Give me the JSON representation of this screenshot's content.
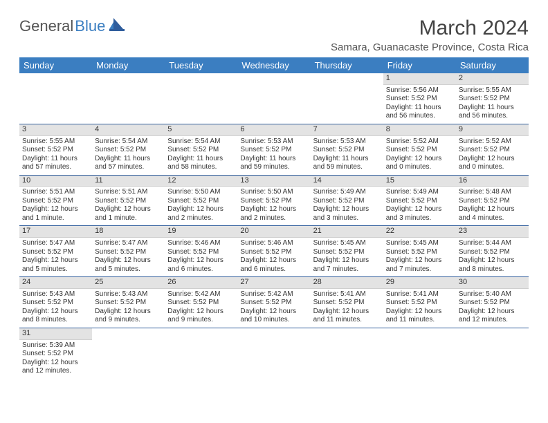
{
  "header": {
    "logo_text1": "General",
    "logo_text2": "Blue",
    "month_title": "March 2024",
    "location": "Samara, Guanacaste Province, Costa Rica"
  },
  "colors": {
    "header_bg": "#3b7ec1",
    "header_text": "#ffffff",
    "daynum_bg": "#e3e3e3",
    "row_divider": "#2f5d9c",
    "logo_accent": "#3b7ec1",
    "body_text": "#333333",
    "page_bg": "#ffffff"
  },
  "day_names": [
    "Sunday",
    "Monday",
    "Tuesday",
    "Wednesday",
    "Thursday",
    "Friday",
    "Saturday"
  ],
  "calendar": {
    "first_day_index": 5,
    "num_days": 31,
    "days": {
      "1": {
        "sunrise": "5:56 AM",
        "sunset": "5:52 PM",
        "daylight": "11 hours and 56 minutes."
      },
      "2": {
        "sunrise": "5:55 AM",
        "sunset": "5:52 PM",
        "daylight": "11 hours and 56 minutes."
      },
      "3": {
        "sunrise": "5:55 AM",
        "sunset": "5:52 PM",
        "daylight": "11 hours and 57 minutes."
      },
      "4": {
        "sunrise": "5:54 AM",
        "sunset": "5:52 PM",
        "daylight": "11 hours and 57 minutes."
      },
      "5": {
        "sunrise": "5:54 AM",
        "sunset": "5:52 PM",
        "daylight": "11 hours and 58 minutes."
      },
      "6": {
        "sunrise": "5:53 AM",
        "sunset": "5:52 PM",
        "daylight": "11 hours and 59 minutes."
      },
      "7": {
        "sunrise": "5:53 AM",
        "sunset": "5:52 PM",
        "daylight": "11 hours and 59 minutes."
      },
      "8": {
        "sunrise": "5:52 AM",
        "sunset": "5:52 PM",
        "daylight": "12 hours and 0 minutes."
      },
      "9": {
        "sunrise": "5:52 AM",
        "sunset": "5:52 PM",
        "daylight": "12 hours and 0 minutes."
      },
      "10": {
        "sunrise": "5:51 AM",
        "sunset": "5:52 PM",
        "daylight": "12 hours and 1 minute."
      },
      "11": {
        "sunrise": "5:51 AM",
        "sunset": "5:52 PM",
        "daylight": "12 hours and 1 minute."
      },
      "12": {
        "sunrise": "5:50 AM",
        "sunset": "5:52 PM",
        "daylight": "12 hours and 2 minutes."
      },
      "13": {
        "sunrise": "5:50 AM",
        "sunset": "5:52 PM",
        "daylight": "12 hours and 2 minutes."
      },
      "14": {
        "sunrise": "5:49 AM",
        "sunset": "5:52 PM",
        "daylight": "12 hours and 3 minutes."
      },
      "15": {
        "sunrise": "5:49 AM",
        "sunset": "5:52 PM",
        "daylight": "12 hours and 3 minutes."
      },
      "16": {
        "sunrise": "5:48 AM",
        "sunset": "5:52 PM",
        "daylight": "12 hours and 4 minutes."
      },
      "17": {
        "sunrise": "5:47 AM",
        "sunset": "5:52 PM",
        "daylight": "12 hours and 5 minutes."
      },
      "18": {
        "sunrise": "5:47 AM",
        "sunset": "5:52 PM",
        "daylight": "12 hours and 5 minutes."
      },
      "19": {
        "sunrise": "5:46 AM",
        "sunset": "5:52 PM",
        "daylight": "12 hours and 6 minutes."
      },
      "20": {
        "sunrise": "5:46 AM",
        "sunset": "5:52 PM",
        "daylight": "12 hours and 6 minutes."
      },
      "21": {
        "sunrise": "5:45 AM",
        "sunset": "5:52 PM",
        "daylight": "12 hours and 7 minutes."
      },
      "22": {
        "sunrise": "5:45 AM",
        "sunset": "5:52 PM",
        "daylight": "12 hours and 7 minutes."
      },
      "23": {
        "sunrise": "5:44 AM",
        "sunset": "5:52 PM",
        "daylight": "12 hours and 8 minutes."
      },
      "24": {
        "sunrise": "5:43 AM",
        "sunset": "5:52 PM",
        "daylight": "12 hours and 8 minutes."
      },
      "25": {
        "sunrise": "5:43 AM",
        "sunset": "5:52 PM",
        "daylight": "12 hours and 9 minutes."
      },
      "26": {
        "sunrise": "5:42 AM",
        "sunset": "5:52 PM",
        "daylight": "12 hours and 9 minutes."
      },
      "27": {
        "sunrise": "5:42 AM",
        "sunset": "5:52 PM",
        "daylight": "12 hours and 10 minutes."
      },
      "28": {
        "sunrise": "5:41 AM",
        "sunset": "5:52 PM",
        "daylight": "12 hours and 11 minutes."
      },
      "29": {
        "sunrise": "5:41 AM",
        "sunset": "5:52 PM",
        "daylight": "12 hours and 11 minutes."
      },
      "30": {
        "sunrise": "5:40 AM",
        "sunset": "5:52 PM",
        "daylight": "12 hours and 12 minutes."
      },
      "31": {
        "sunrise": "5:39 AM",
        "sunset": "5:52 PM",
        "daylight": "12 hours and 12 minutes."
      }
    },
    "labels": {
      "sunrise_prefix": "Sunrise: ",
      "sunset_prefix": "Sunset: ",
      "daylight_prefix": "Daylight: "
    }
  }
}
